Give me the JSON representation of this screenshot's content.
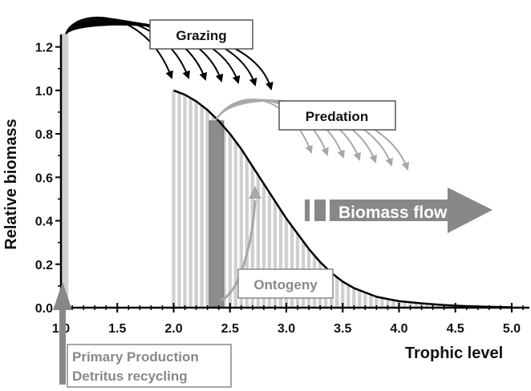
{
  "chart_data": {
    "type": "area",
    "ylabel": "Relative biomass",
    "xlabel": "Trophic level",
    "xlim": [
      1.0,
      5.1
    ],
    "ylim": [
      0.0,
      1.25
    ],
    "x_ticks": [
      "1.0",
      "1.5",
      "2.0",
      "2.5",
      "3.0",
      "3.5",
      "4.0",
      "4.5",
      "5.0"
    ],
    "y_ticks": [
      "0.0",
      "0.2",
      "0.4",
      "0.6",
      "0.8",
      "1.0",
      "1.2"
    ],
    "series": [
      {
        "x": [
          2.0,
          2.1,
          2.2,
          2.3,
          2.4,
          2.5,
          2.6,
          2.7,
          2.8,
          2.9,
          3.0,
          3.1,
          3.2,
          3.3,
          3.4,
          3.5,
          3.6,
          3.7,
          3.8,
          3.9,
          4.0,
          4.2,
          4.4,
          4.6,
          4.8,
          5.0
        ],
        "y": [
          1.0,
          0.98,
          0.95,
          0.91,
          0.86,
          0.8,
          0.73,
          0.65,
          0.57,
          0.49,
          0.41,
          0.34,
          0.27,
          0.21,
          0.16,
          0.12,
          0.09,
          0.07,
          0.05,
          0.04,
          0.03,
          0.02,
          0.012,
          0.007,
          0.004,
          0.002
        ]
      }
    ],
    "primary_bar": {
      "x": 1.03,
      "y": 1.26
    },
    "highlight_bar": {
      "x": 2.38,
      "y": 0.86
    },
    "annotations": {
      "grazing": "Grazing",
      "predation": "Predation",
      "ontogeny": "Ontogeny",
      "biomass_flow": "Biomass flow",
      "primary_production": "Primary Production",
      "detritus_recycling": "Detritus recycling"
    },
    "colors": {
      "axis": "#000000",
      "curve": "#000000",
      "bars": "#d0d0d0",
      "highlight_bar": "#8c8c8c",
      "flow_arrow": "#888888",
      "grazing_arrows": "#000000",
      "predation_arrows": "#a8a8a8",
      "box_text_gray": "#888888"
    }
  }
}
